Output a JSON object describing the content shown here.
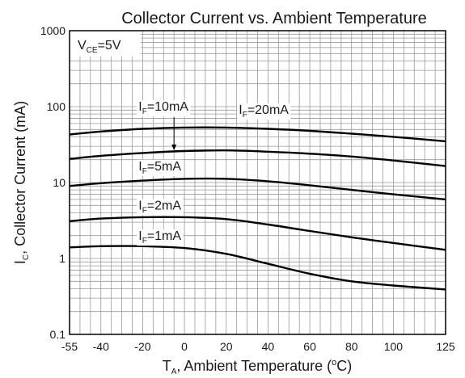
{
  "chart_data": {
    "type": "line",
    "title": "Collector Current vs. Ambient Temperature",
    "xlabel": {
      "main": "T",
      "sub": "A",
      "rest": ", Ambient Temperature (",
      "sup": "o",
      "end": "C)"
    },
    "ylabel": {
      "main": "I",
      "sub": "C",
      "rest": ", Collector Current (mA)"
    },
    "xlim": [
      -55,
      125
    ],
    "ylim": [
      0.1,
      1000
    ],
    "yscale": "log",
    "grid": true,
    "x_ticks": [
      -55,
      -40,
      -20,
      0,
      20,
      40,
      60,
      80,
      100,
      125
    ],
    "x_tick_labels": [
      "-55",
      "-40",
      "-20",
      "0",
      "20",
      "40",
      "60",
      "80",
      "100",
      "125"
    ],
    "y_ticks": [
      0.1,
      1,
      10,
      100,
      1000
    ],
    "y_tick_labels": [
      "0.1",
      "1",
      "10",
      "100",
      "1000"
    ],
    "condition": {
      "main": "V",
      "sub": "CE",
      "rest": "=5V"
    },
    "series": [
      {
        "name": "IF=20mA",
        "label": {
          "main": "I",
          "sub": "F",
          "rest": "=20mA"
        },
        "label_at": [
          26,
          80
        ],
        "x": [
          -55,
          -40,
          -20,
          0,
          20,
          40,
          60,
          80,
          100,
          125
        ],
        "y": [
          43,
          47,
          51,
          53,
          53,
          51,
          48,
          44,
          40,
          35
        ]
      },
      {
        "name": "IF=10mA",
        "label": {
          "main": "I",
          "sub": "F",
          "rest": "=10mA"
        },
        "label_at": [
          -22,
          88
        ],
        "arrow_to": [
          -5,
          26
        ],
        "x": [
          -55,
          -40,
          -20,
          0,
          20,
          40,
          60,
          80,
          100,
          125
        ],
        "y": [
          20.5,
          22.5,
          24.5,
          26,
          26.5,
          25.5,
          24,
          22,
          19.5,
          16.5
        ]
      },
      {
        "name": "IF=5mA",
        "label": {
          "main": "I",
          "sub": "F",
          "rest": "=5mA"
        },
        "label_at": [
          -22,
          14.5
        ],
        "x": [
          -55,
          -40,
          -20,
          0,
          20,
          40,
          60,
          80,
          100,
          125
        ],
        "y": [
          9,
          9.8,
          10.6,
          11.2,
          11.2,
          10.4,
          9.2,
          8,
          7,
          6
        ]
      },
      {
        "name": "IF=2mA",
        "label": {
          "main": "I",
          "sub": "F",
          "rest": "=2mA"
        },
        "label_at": [
          -22,
          4.4
        ],
        "x": [
          -55,
          -40,
          -20,
          0,
          20,
          40,
          60,
          80,
          100,
          125
        ],
        "y": [
          3.1,
          3.35,
          3.5,
          3.5,
          3.3,
          2.8,
          2.3,
          1.9,
          1.6,
          1.3
        ]
      },
      {
        "name": "IF=1mA",
        "label": {
          "main": "I",
          "sub": "F",
          "rest": "=1mA"
        },
        "label_at": [
          -22,
          1.75
        ],
        "x": [
          -55,
          -40,
          -20,
          0,
          20,
          40,
          60,
          80,
          100,
          125
        ],
        "y": [
          1.4,
          1.45,
          1.45,
          1.37,
          1.15,
          0.85,
          0.63,
          0.5,
          0.44,
          0.39
        ]
      }
    ]
  }
}
